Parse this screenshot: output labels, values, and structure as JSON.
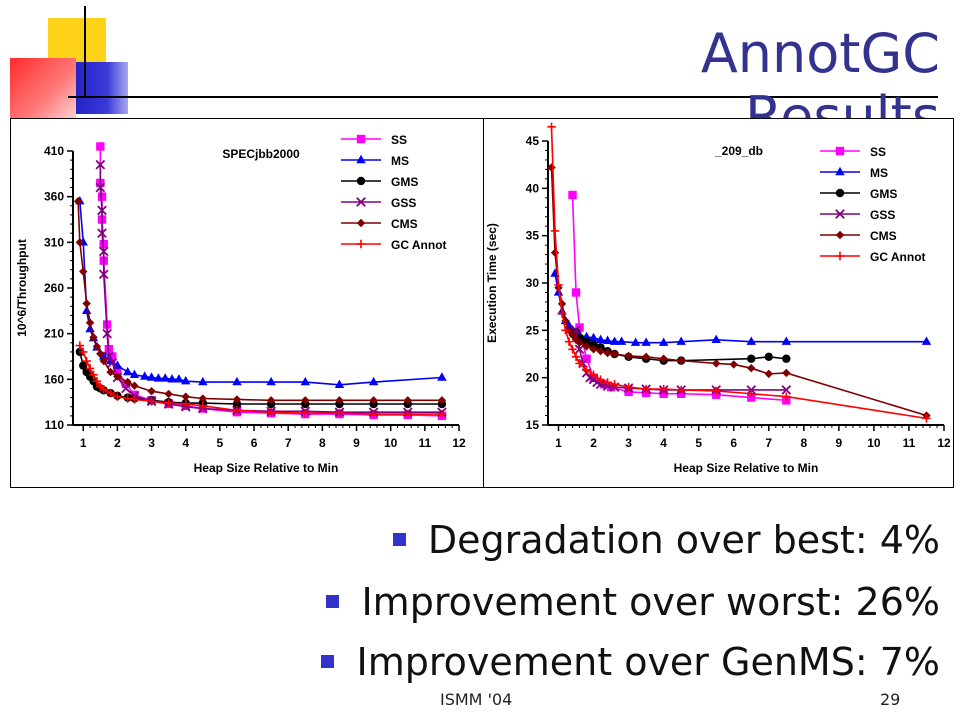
{
  "slide": {
    "title": "AnnotGC Results",
    "bullets": [
      "Degradation over best: 4%",
      "Improvement over worst: 26%",
      "Improvement over GenMS: 7%"
    ],
    "footer_center": "ISMM '04",
    "page_number": "29",
    "colors": {
      "title": "#33338f",
      "bullet": "#3333cc",
      "deco_yellow": "#ffd21a",
      "deco_blue": "#2f2fd0",
      "deco_red": "#ff3a3a"
    }
  },
  "chart_data": [
    {
      "type": "line",
      "title": "SPECjbb2000",
      "xlabel": "Heap Size Relative to Min",
      "ylabel": "10^6/Throughput",
      "xlim": [
        0.7,
        12
      ],
      "ylim": [
        110,
        410
      ],
      "xticks": [
        1,
        2,
        3,
        4,
        5,
        6,
        7,
        8,
        9,
        10,
        11,
        12
      ],
      "yticks": [
        110,
        160,
        210,
        260,
        310,
        360,
        410
      ],
      "legend_position": "top-right",
      "series": [
        {
          "name": "SS",
          "color": "#ff00ff",
          "marker": "square",
          "x": [
            1.5,
            1.5,
            1.55,
            1.55,
            1.6,
            1.6,
            1.7,
            1.75,
            1.85,
            2.0,
            2.25,
            2.5,
            3,
            3.5,
            4,
            4.5,
            5.5,
            6.5,
            7.5,
            8.5,
            9.5,
            10.5,
            11.5
          ],
          "y": [
            415,
            375,
            360,
            335,
            308,
            290,
            220,
            193,
            185,
            170,
            155,
            143,
            137,
            133,
            131,
            128,
            124,
            123,
            122,
            122,
            121,
            121,
            120
          ]
        },
        {
          "name": "MS",
          "color": "#0000ff",
          "marker": "triangle",
          "x": [
            0.9,
            1.0,
            1.1,
            1.2,
            1.3,
            1.4,
            1.6,
            1.8,
            2.0,
            2.3,
            2.5,
            2.8,
            3.0,
            3.2,
            3.4,
            3.6,
            3.8,
            4.0,
            4.5,
            5.5,
            6.5,
            7.5,
            8.5,
            9.5,
            11.5
          ],
          "y": [
            355,
            310,
            235,
            215,
            205,
            195,
            185,
            180,
            175,
            168,
            165,
            163,
            162,
            161,
            161,
            160,
            160,
            158,
            157,
            157,
            157,
            157,
            154,
            157,
            162
          ]
        },
        {
          "name": "GMS",
          "color": "#000000",
          "marker": "circle",
          "x": [
            0.9,
            1.0,
            1.1,
            1.2,
            1.3,
            1.4,
            1.5,
            1.6,
            1.8,
            2.0,
            2.3,
            2.5,
            3.0,
            3.5,
            4.0,
            4.5,
            5.5,
            6.5,
            7.5,
            8.5,
            9.5,
            10.5,
            11.5
          ],
          "y": [
            190,
            175,
            168,
            163,
            158,
            152,
            150,
            148,
            145,
            142,
            140,
            139,
            137,
            135,
            134,
            134,
            133,
            133,
            133,
            133,
            133,
            133,
            133
          ]
        },
        {
          "name": "GSS",
          "color": "#800080",
          "marker": "x",
          "x": [
            1.5,
            1.5,
            1.55,
            1.55,
            1.6,
            1.6,
            1.7,
            1.75,
            1.85,
            2.0,
            2.25,
            2.5,
            3,
            3.5,
            4,
            4.5,
            5.5,
            6.5,
            7.5,
            8.5,
            9.5,
            10.5,
            11.5
          ],
          "y": [
            395,
            370,
            345,
            320,
            300,
            275,
            210,
            185,
            178,
            162,
            150,
            142,
            136,
            133,
            130,
            128,
            126,
            125,
            125,
            124,
            124,
            124,
            124
          ]
        },
        {
          "name": "CMS",
          "color": "#800000",
          "marker": "diamond",
          "x": [
            0.85,
            0.9,
            1.0,
            1.1,
            1.2,
            1.3,
            1.4,
            1.5,
            1.6,
            1.8,
            2.0,
            2.3,
            2.5,
            3.0,
            3.5,
            4.0,
            4.5,
            5.5,
            6.5,
            7.5,
            8.5,
            9.5,
            10.5,
            11.5
          ],
          "y": [
            355,
            310,
            278,
            243,
            222,
            206,
            196,
            188,
            180,
            168,
            163,
            157,
            153,
            147,
            144,
            141,
            139,
            138,
            137,
            137,
            137,
            137,
            137,
            137
          ]
        },
        {
          "name": "GC Annot",
          "color": "#ff0000",
          "marker": "plus",
          "x": [
            0.9,
            1.0,
            1.1,
            1.2,
            1.3,
            1.4,
            1.5,
            1.6,
            1.8,
            2.0,
            2.3,
            2.5,
            3.0,
            3.5,
            4.0,
            4.5,
            5.5,
            6.5,
            7.5,
            8.5,
            9.5,
            10.5,
            11.5
          ],
          "y": [
            197,
            190,
            180,
            172,
            165,
            158,
            152,
            149,
            145,
            141,
            139,
            138,
            136,
            134,
            133,
            131,
            126,
            124,
            123,
            123,
            122,
            122,
            122
          ]
        }
      ]
    },
    {
      "type": "line",
      "title": "_209_db",
      "xlabel": "Heap Size Relative to Min",
      "ylabel": "Execution Time (sec)",
      "xlim": [
        0.7,
        12
      ],
      "ylim": [
        15,
        45
      ],
      "xticks": [
        1,
        2,
        3,
        4,
        5,
        6,
        7,
        8,
        9,
        10,
        11,
        12
      ],
      "yticks": [
        15,
        20,
        25,
        30,
        35,
        40,
        45
      ],
      "legend_position": "top-right",
      "series": [
        {
          "name": "SS",
          "color": "#ff00ff",
          "marker": "square",
          "x": [
            1.4,
            1.5,
            1.6,
            1.8,
            2.0,
            2.3,
            2.5,
            3.0,
            3.5,
            4.0,
            4.5,
            5.5,
            6.5,
            7.5
          ],
          "y": [
            39.3,
            29,
            25.3,
            22,
            20,
            19.3,
            19.0,
            18.5,
            18.4,
            18.3,
            18.3,
            18.2,
            17.9,
            17.6
          ]
        },
        {
          "name": "MS",
          "color": "#0000ff",
          "marker": "triangle",
          "x": [
            0.9,
            1.0,
            1.1,
            1.2,
            1.3,
            1.4,
            1.5,
            1.6,
            1.8,
            2.0,
            2.2,
            2.4,
            2.6,
            2.8,
            3.2,
            3.5,
            4.0,
            4.5,
            5.5,
            6.5,
            7.5,
            11.5
          ],
          "y": [
            31,
            29,
            27,
            26,
            25.5,
            25,
            24.8,
            24.5,
            24.3,
            24.2,
            24,
            23.9,
            23.8,
            23.8,
            23.7,
            23.7,
            23.7,
            23.8,
            24,
            23.8,
            23.8,
            23.8
          ]
        },
        {
          "name": "GMS",
          "color": "#000000",
          "marker": "circle",
          "x": [
            1.5,
            1.6,
            1.8,
            2.0,
            2.2,
            2.4,
            2.6,
            3.0,
            3.5,
            4.0,
            4.5,
            6.5,
            7.0,
            7.5
          ],
          "y": [
            24.8,
            24.2,
            23.8,
            23.5,
            23.2,
            22.8,
            22.5,
            22.2,
            22.0,
            21.8,
            21.8,
            22.0,
            22.2,
            22.0
          ]
        },
        {
          "name": "GSS",
          "color": "#800080",
          "marker": "x",
          "x": [
            1.5,
            1.6,
            1.7,
            1.8,
            1.9,
            2.0,
            2.1,
            2.2,
            2.4,
            2.6,
            3.0,
            3.5,
            4.0,
            4.5,
            5.5,
            6.5,
            7.5
          ],
          "y": [
            25,
            23,
            21.5,
            20.5,
            20,
            19.8,
            19.5,
            19.3,
            19.1,
            19.0,
            18.9,
            18.8,
            18.7,
            18.7,
            18.7,
            18.7,
            18.7
          ]
        },
        {
          "name": "CMS",
          "color": "#800000",
          "marker": "diamond",
          "x": [
            0.8,
            0.9,
            1.0,
            1.1,
            1.2,
            1.3,
            1.4,
            1.5,
            1.6,
            1.8,
            2.0,
            2.2,
            2.4,
            2.6,
            3.0,
            3.5,
            4.0,
            4.5,
            5.5,
            6.0,
            6.5,
            7.0,
            7.5,
            11.5
          ],
          "y": [
            42.2,
            33.2,
            29.5,
            27.8,
            26,
            25,
            24.5,
            24,
            23.7,
            23.3,
            23.0,
            22.8,
            22.6,
            22.5,
            22.3,
            22.2,
            22.0,
            21.8,
            21.5,
            21.4,
            21.0,
            20.4,
            20.5,
            16.0
          ]
        },
        {
          "name": "GC Annot",
          "color": "#ff0000",
          "marker": "plus",
          "x": [
            0.8,
            0.9,
            1.0,
            1.1,
            1.2,
            1.3,
            1.4,
            1.5,
            1.6,
            1.8,
            2.0,
            2.2,
            2.4,
            2.6,
            3.0,
            3.5,
            4.0,
            4.5,
            5.5,
            6.5,
            7.5,
            11.5
          ],
          "y": [
            48,
            35.5,
            29.8,
            26.8,
            25,
            23.8,
            23,
            22.2,
            21.5,
            20.8,
            20.3,
            19.8,
            19.5,
            19.3,
            19.0,
            18.8,
            18.8,
            18.7,
            18.6,
            18.3,
            18.0,
            15.7
          ]
        }
      ]
    }
  ]
}
